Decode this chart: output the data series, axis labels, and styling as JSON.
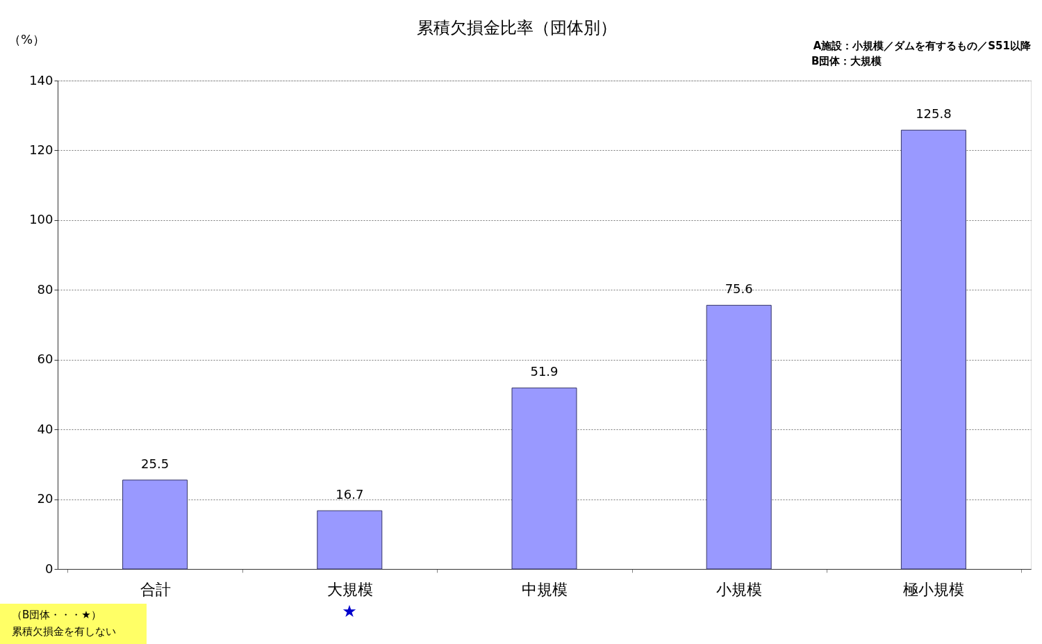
{
  "chart_data": {
    "type": "bar",
    "title": "累積欠損金比率（団体別）",
    "ylabel": "（%）",
    "categories": [
      "合計",
      "大規模",
      "中規模",
      "小規模",
      "極小規模"
    ],
    "values": [
      25.5,
      16.7,
      51.9,
      75.6,
      125.8
    ],
    "color": "#9999ff",
    "ylim": [
      0,
      140
    ],
    "yticks": [
      0,
      20,
      40,
      60,
      80,
      100,
      120,
      140
    ],
    "grid": "y",
    "data_labels": true,
    "annotations": [
      "A施設：小規模／ダムを有するもの／S51以降",
      "B団体：大規模",
      "（B団体・・・★）",
      "累積欠損金を有しない",
      "★"
    ]
  }
}
